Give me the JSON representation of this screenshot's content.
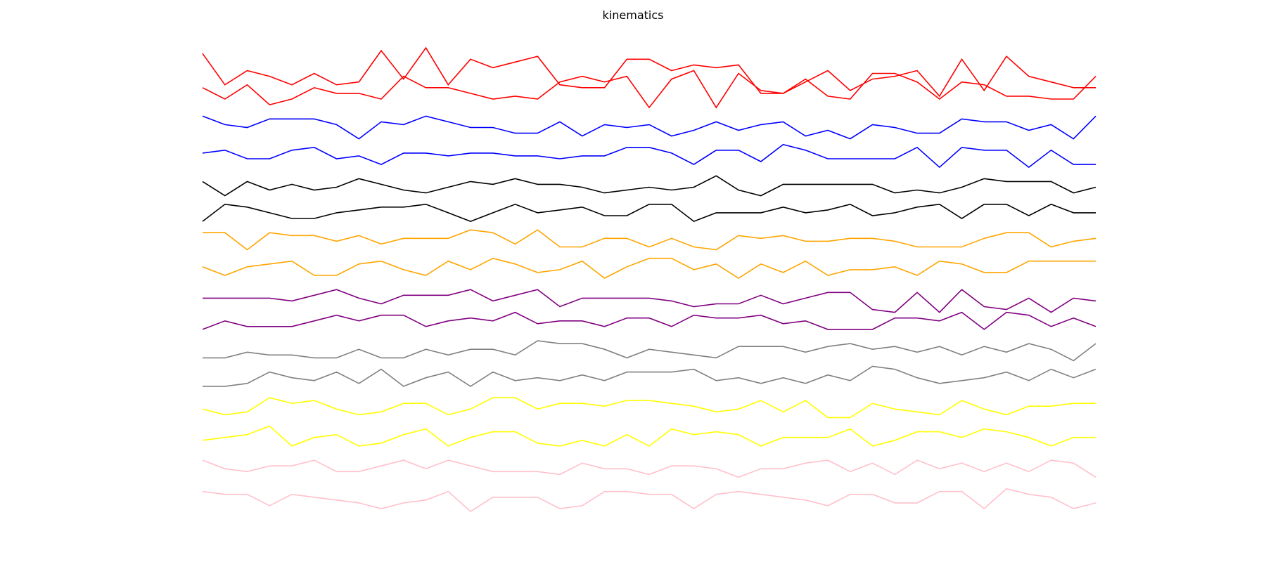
{
  "chart_data": {
    "type": "line",
    "title": "kinematics",
    "xlabel": "",
    "ylabel": "",
    "axes_visible": false,
    "grid": false,
    "legend": "none",
    "x": [
      0,
      1,
      2,
      3,
      4,
      5,
      6,
      7,
      8,
      9,
      10,
      11,
      12,
      13,
      14,
      15,
      16,
      17,
      18,
      19,
      20,
      21,
      22,
      23,
      24,
      25,
      26,
      27,
      28,
      29,
      30,
      31,
      32,
      33,
      34,
      35,
      36,
      37,
      38,
      39,
      40
    ],
    "xlim": [
      0,
      40
    ],
    "ylim": [
      0,
      16.5
    ],
    "series": [
      {
        "color": "#ff0000",
        "baseline": 15.5,
        "values": [
          16.1,
          15.0,
          15.5,
          15.3,
          15.0,
          15.4,
          15.0,
          15.1,
          16.2,
          15.2,
          16.3,
          15.0,
          15.9,
          15.6,
          15.8,
          16.0,
          15.0,
          14.9,
          14.9,
          15.9,
          15.9,
          15.5,
          15.7,
          15.6,
          15.7,
          14.7,
          14.7,
          15.1,
          15.5,
          14.8,
          15.2,
          15.3,
          15.5,
          14.6,
          15.9,
          14.8,
          16.0,
          15.3,
          15.1,
          14.9,
          14.9
        ]
      },
      {
        "color": "#ff0000",
        "baseline": 14.5,
        "values": [
          14.9,
          14.5,
          15.0,
          14.3,
          14.5,
          14.9,
          14.7,
          14.7,
          14.5,
          15.3,
          14.9,
          14.9,
          14.7,
          14.5,
          14.6,
          14.5,
          15.1,
          15.3,
          15.1,
          15.3,
          14.2,
          15.2,
          15.5,
          14.2,
          15.4,
          14.8,
          14.7,
          15.2,
          14.6,
          14.5,
          15.4,
          15.4,
          15.1,
          14.5,
          15.1,
          15.0,
          14.6,
          14.6,
          14.5,
          14.5,
          15.3
        ]
      },
      {
        "color": "#0000ff",
        "baseline": 13.5,
        "values": [
          13.9,
          13.6,
          13.5,
          13.8,
          13.8,
          13.8,
          13.6,
          13.1,
          13.7,
          13.6,
          13.9,
          13.7,
          13.5,
          13.5,
          13.3,
          13.3,
          13.7,
          13.2,
          13.6,
          13.5,
          13.6,
          13.2,
          13.4,
          13.7,
          13.4,
          13.6,
          13.7,
          13.2,
          13.4,
          13.1,
          13.6,
          13.5,
          13.3,
          13.3,
          13.8,
          13.7,
          13.7,
          13.4,
          13.6,
          13.1,
          13.9
        ]
      },
      {
        "color": "#0000ff",
        "baseline": 12.5,
        "values": [
          12.6,
          12.7,
          12.4,
          12.4,
          12.7,
          12.8,
          12.4,
          12.5,
          12.2,
          12.6,
          12.6,
          12.5,
          12.6,
          12.6,
          12.5,
          12.5,
          12.4,
          12.5,
          12.5,
          12.8,
          12.8,
          12.6,
          12.2,
          12.7,
          12.7,
          12.3,
          12.9,
          12.7,
          12.4,
          12.4,
          12.4,
          12.4,
          12.8,
          12.1,
          12.8,
          12.7,
          12.7,
          12.1,
          12.7,
          12.2,
          12.2
        ]
      },
      {
        "color": "#000000",
        "baseline": 11.5,
        "values": [
          11.6,
          11.1,
          11.6,
          11.3,
          11.5,
          11.3,
          11.4,
          11.7,
          11.5,
          11.3,
          11.2,
          11.4,
          11.6,
          11.5,
          11.7,
          11.5,
          11.5,
          11.4,
          11.2,
          11.3,
          11.4,
          11.3,
          11.4,
          11.8,
          11.3,
          11.1,
          11.5,
          11.5,
          11.5,
          11.5,
          11.5,
          11.2,
          11.3,
          11.2,
          11.4,
          11.7,
          11.6,
          11.6,
          11.6,
          11.2,
          11.4
        ]
      },
      {
        "color": "#000000",
        "baseline": 10.5,
        "values": [
          10.2,
          10.8,
          10.7,
          10.5,
          10.3,
          10.3,
          10.5,
          10.6,
          10.7,
          10.7,
          10.8,
          10.5,
          10.2,
          10.5,
          10.8,
          10.5,
          10.6,
          10.7,
          10.4,
          10.4,
          10.8,
          10.8,
          10.2,
          10.5,
          10.5,
          10.5,
          10.7,
          10.5,
          10.6,
          10.8,
          10.4,
          10.5,
          10.7,
          10.8,
          10.3,
          10.8,
          10.8,
          10.4,
          10.8,
          10.5,
          10.5
        ]
      },
      {
        "color": "#ffa500",
        "baseline": 9.5,
        "values": [
          9.8,
          9.8,
          9.2,
          9.8,
          9.7,
          9.7,
          9.5,
          9.7,
          9.4,
          9.6,
          9.6,
          9.6,
          9.9,
          9.8,
          9.4,
          9.9,
          9.3,
          9.3,
          9.6,
          9.6,
          9.3,
          9.6,
          9.3,
          9.2,
          9.7,
          9.6,
          9.7,
          9.5,
          9.5,
          9.6,
          9.6,
          9.5,
          9.3,
          9.3,
          9.3,
          9.6,
          9.8,
          9.8,
          9.3,
          9.5,
          9.6
        ]
      },
      {
        "color": "#ffa500",
        "baseline": 8.5,
        "values": [
          8.6,
          8.3,
          8.6,
          8.7,
          8.8,
          8.3,
          8.3,
          8.7,
          8.8,
          8.5,
          8.3,
          8.8,
          8.5,
          8.9,
          8.7,
          8.4,
          8.5,
          8.8,
          8.2,
          8.6,
          8.9,
          8.9,
          8.5,
          8.7,
          8.2,
          8.7,
          8.4,
          8.8,
          8.3,
          8.5,
          8.5,
          8.6,
          8.3,
          8.8,
          8.7,
          8.4,
          8.4,
          8.8,
          8.8,
          8.8,
          8.8
        ]
      },
      {
        "color": "#800080",
        "baseline": 7.5,
        "values": [
          7.5,
          7.5,
          7.5,
          7.5,
          7.4,
          7.6,
          7.8,
          7.5,
          7.3,
          7.6,
          7.6,
          7.6,
          7.8,
          7.4,
          7.6,
          7.8,
          7.2,
          7.5,
          7.5,
          7.5,
          7.5,
          7.4,
          7.2,
          7.3,
          7.3,
          7.6,
          7.3,
          7.5,
          7.7,
          7.7,
          7.1,
          7.0,
          7.7,
          7.0,
          7.8,
          7.2,
          7.1,
          7.5,
          7.0,
          7.5,
          7.4
        ]
      },
      {
        "color": "#800080",
        "baseline": 6.5,
        "values": [
          6.4,
          6.7,
          6.5,
          6.5,
          6.5,
          6.7,
          6.9,
          6.7,
          6.9,
          6.9,
          6.5,
          6.7,
          6.8,
          6.7,
          7.0,
          6.6,
          6.7,
          6.7,
          6.5,
          6.8,
          6.8,
          6.5,
          6.9,
          6.8,
          6.8,
          6.9,
          6.6,
          6.7,
          6.4,
          6.4,
          6.4,
          6.8,
          6.8,
          6.7,
          7.0,
          6.4,
          7.0,
          6.9,
          6.5,
          6.8,
          6.5
        ]
      },
      {
        "color": "#808080",
        "baseline": 5.5,
        "values": [
          5.4,
          5.4,
          5.6,
          5.5,
          5.5,
          5.4,
          5.4,
          5.7,
          5.4,
          5.4,
          5.7,
          5.5,
          5.7,
          5.7,
          5.5,
          6.0,
          5.9,
          5.9,
          5.7,
          5.4,
          5.7,
          5.6,
          5.5,
          5.4,
          5.8,
          5.8,
          5.8,
          5.6,
          5.8,
          5.9,
          5.7,
          5.8,
          5.6,
          5.8,
          5.5,
          5.8,
          5.6,
          5.9,
          5.7,
          5.3,
          5.9
        ]
      },
      {
        "color": "#808080",
        "baseline": 4.5,
        "values": [
          4.4,
          4.4,
          4.5,
          4.9,
          4.7,
          4.6,
          4.9,
          4.5,
          5.0,
          4.4,
          4.7,
          4.9,
          4.4,
          4.9,
          4.6,
          4.7,
          4.6,
          4.8,
          4.6,
          4.9,
          4.9,
          4.9,
          5.0,
          4.6,
          4.7,
          4.5,
          4.7,
          4.5,
          4.8,
          4.6,
          5.1,
          5.0,
          4.7,
          4.5,
          4.6,
          4.7,
          4.9,
          4.6,
          5.0,
          4.7,
          5.0
        ]
      },
      {
        "color": "#ffff00",
        "baseline": 3.5,
        "values": [
          3.6,
          3.4,
          3.5,
          4.0,
          3.8,
          3.9,
          3.6,
          3.4,
          3.5,
          3.8,
          3.8,
          3.4,
          3.6,
          4.0,
          4.0,
          3.6,
          3.8,
          3.8,
          3.7,
          3.9,
          3.9,
          3.8,
          3.7,
          3.5,
          3.6,
          3.9,
          3.5,
          3.9,
          3.3,
          3.3,
          3.8,
          3.6,
          3.5,
          3.4,
          3.9,
          3.6,
          3.4,
          3.7,
          3.7,
          3.8,
          3.8
        ]
      },
      {
        "color": "#ffff00",
        "baseline": 2.5,
        "values": [
          2.5,
          2.6,
          2.7,
          3.0,
          2.3,
          2.6,
          2.7,
          2.3,
          2.4,
          2.7,
          2.9,
          2.3,
          2.6,
          2.8,
          2.8,
          2.4,
          2.3,
          2.5,
          2.3,
          2.7,
          2.3,
          2.9,
          2.7,
          2.8,
          2.7,
          2.3,
          2.6,
          2.6,
          2.6,
          2.9,
          2.3,
          2.5,
          2.8,
          2.8,
          2.6,
          2.9,
          2.8,
          2.6,
          2.3,
          2.6,
          2.6
        ]
      },
      {
        "color": "#ffc0cb",
        "baseline": 1.5,
        "values": [
          1.8,
          1.5,
          1.4,
          1.6,
          1.6,
          1.8,
          1.4,
          1.4,
          1.6,
          1.8,
          1.5,
          1.8,
          1.6,
          1.4,
          1.4,
          1.4,
          1.3,
          1.7,
          1.5,
          1.5,
          1.3,
          1.6,
          1.6,
          1.5,
          1.2,
          1.5,
          1.5,
          1.7,
          1.8,
          1.4,
          1.7,
          1.3,
          1.8,
          1.5,
          1.7,
          1.4,
          1.7,
          1.4,
          1.8,
          1.7,
          1.2
        ]
      },
      {
        "color": "#ffc0cb",
        "baseline": 0.5,
        "values": [
          0.7,
          0.6,
          0.6,
          0.2,
          0.6,
          0.5,
          0.4,
          0.3,
          0.1,
          0.3,
          0.4,
          0.7,
          0.0,
          0.5,
          0.5,
          0.5,
          0.1,
          0.2,
          0.7,
          0.7,
          0.6,
          0.6,
          0.1,
          0.6,
          0.7,
          0.6,
          0.5,
          0.4,
          0.2,
          0.6,
          0.6,
          0.3,
          0.3,
          0.7,
          0.7,
          0.1,
          0.8,
          0.6,
          0.5,
          0.1,
          0.3
        ]
      }
    ]
  }
}
